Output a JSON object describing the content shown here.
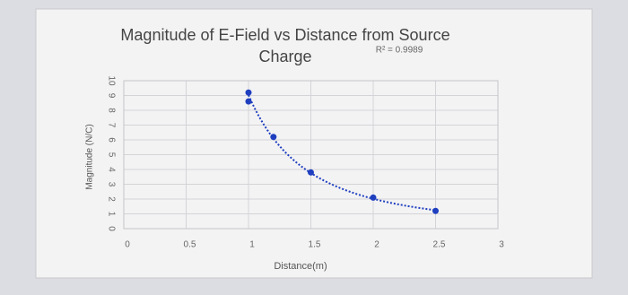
{
  "chart_data": {
    "type": "scatter",
    "title": "Magnitude of E-Field vs Distance from Source Charge",
    "x_label": "Distance(m)",
    "y_label": "Magnitude (N/C)",
    "annotation": "R² = 0.9989",
    "x": [
      1,
      1,
      1.2,
      1.5,
      2,
      2.5
    ],
    "values": [
      9.2,
      8.6,
      6.2,
      3.8,
      2.1,
      1.2
    ],
    "color": "#1f3fbf",
    "trendline": "power",
    "xlim": [
      0,
      3
    ],
    "xticks": [
      0,
      0.5,
      1,
      1.5,
      2,
      2.5,
      3
    ],
    "ylim": [
      0,
      10
    ],
    "yticks": [
      0,
      1,
      2,
      3,
      4,
      5,
      6,
      7,
      8,
      9,
      10
    ],
    "grid": true
  }
}
